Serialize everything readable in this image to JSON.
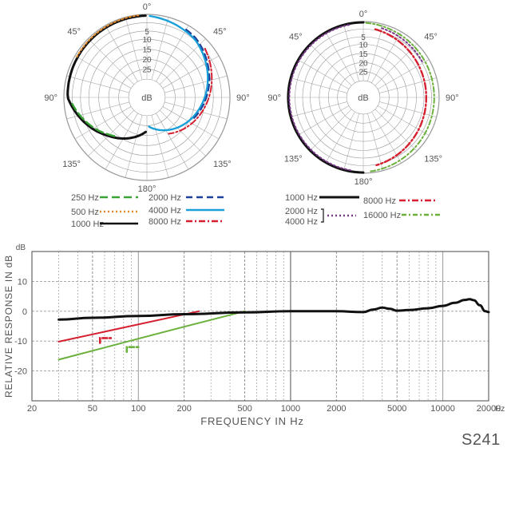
{
  "polar_left": {
    "angle_labels": [
      "0°",
      "45°",
      "45°",
      "90°",
      "90°",
      "135°",
      "135°",
      "180°"
    ],
    "ring_labels": [
      "5",
      "10",
      "15",
      "20",
      "25",
      "dB"
    ],
    "legend": [
      {
        "label": "250 Hz",
        "color": "#3aa335",
        "dash": "10,5"
      },
      {
        "label": "500 Hz",
        "color": "#e08a2a",
        "dash": "2,3"
      },
      {
        "label": "1000 Hz",
        "color": "#111111",
        "dash": ""
      },
      {
        "label": "2000 Hz",
        "color": "#1b3f9a",
        "dash": "8,5"
      },
      {
        "label": "4000 Hz",
        "color": "#1aa0d8",
        "dash": ""
      },
      {
        "label": "8000 Hz",
        "color": "#d62030",
        "dash": "8,3,2,3"
      }
    ]
  },
  "polar_right": {
    "angle_labels": [
      "0°",
      "45°",
      "45°",
      "90°",
      "90°",
      "135°",
      "135°",
      "180°"
    ],
    "ring_labels": [
      "5",
      "10",
      "15",
      "20",
      "25",
      "dB"
    ],
    "legend": [
      {
        "label": "1000 Hz",
        "color": "#111111",
        "dash": ""
      },
      {
        "label": "2000 Hz",
        "color": "#7a3a8a",
        "dash": "2,3"
      },
      {
        "label": "4000 Hz",
        "color": "#7a3a8a",
        "dash": "2,3"
      },
      {
        "label": "8000 Hz",
        "color": "#d62030",
        "dash": "8,3,2,3"
      },
      {
        "label": "16000 Hz",
        "color": "#6ab03a",
        "dash": "6,3,2,3"
      }
    ]
  },
  "chart_data": {
    "type": "line",
    "xscale": "log",
    "xlim": [
      20,
      20000
    ],
    "ylim": [
      -30,
      20
    ],
    "x_ticks": [
      20,
      50,
      100,
      200,
      500,
      1000,
      2000,
      5000,
      10000,
      20000
    ],
    "x_tick_labels": [
      "20",
      "50",
      "100",
      "200",
      "500",
      "1000",
      "2000",
      "5000",
      "10000",
      "20000"
    ],
    "y_ticks": [
      10,
      0,
      -10,
      -20
    ],
    "y_tick_labels": [
      "10",
      "0",
      "-10",
      "-20"
    ],
    "y_unit": "dB",
    "x_unit": "Hz",
    "xlabel": "FREQUENCY IN Hz",
    "ylabel": "RELATIVE RESPONSE IN dB",
    "grid": true,
    "series": [
      {
        "color": "#111111",
        "x": [
          30,
          50,
          100,
          200,
          500,
          1000,
          2000,
          3000,
          3500,
          4000,
          4500,
          5000,
          6000,
          8000,
          10000,
          12000,
          14000,
          15000,
          16000,
          17500,
          19000,
          20000
        ],
        "y": [
          -2.8,
          -2.2,
          -1.6,
          -1.0,
          -0.4,
          0,
          0,
          -0.3,
          0.6,
          1.2,
          0.8,
          0.2,
          0.4,
          1.0,
          1.8,
          2.8,
          3.8,
          4.0,
          3.7,
          2.0,
          0.0,
          -0.3
        ]
      },
      {
        "color": "#d62030",
        "x": [
          30,
          250
        ],
        "y": [
          -10.2,
          0
        ]
      },
      {
        "color": "#6ab03a",
        "x": [
          30,
          100,
          200,
          500
        ],
        "y": [
          -16.2,
          -9.2,
          -5.2,
          0
        ]
      }
    ],
    "annotations": [
      {
        "color": "#d62030",
        "x1": 56,
        "x2": 66,
        "y": -9,
        "hook": -10.6
      },
      {
        "color": "#6ab03a",
        "x1": 84,
        "x2": 100,
        "y": -12,
        "hook": -13.6
      }
    ]
  },
  "model_name": "S241"
}
